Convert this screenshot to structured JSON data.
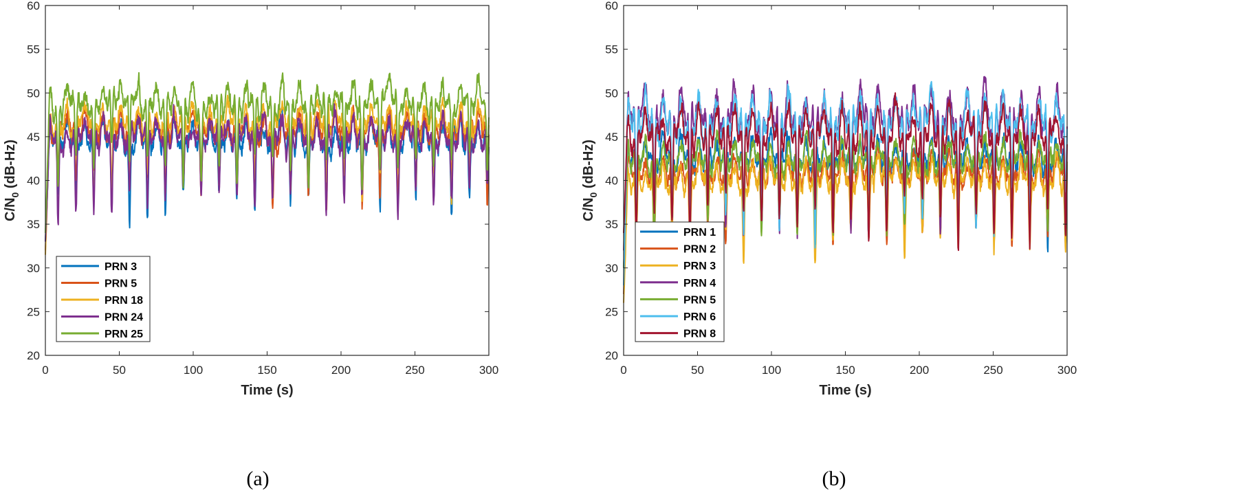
{
  "figure": {
    "caption_a": "(a)",
    "caption_b": "(b)"
  },
  "chart_data": [
    {
      "type": "line",
      "panel": "a",
      "caption": "(a)",
      "xlabel": "Time (s)",
      "ylabel_main": "C/N",
      "ylabel_sub": "0",
      "ylabel_unit": " (dB-Hz)",
      "xlim": [
        0,
        300
      ],
      "ylim": [
        20,
        60
      ],
      "xticks": [
        0,
        50,
        100,
        150,
        200,
        250,
        300
      ],
      "yticks": [
        20,
        25,
        30,
        35,
        40,
        45,
        50,
        55,
        60
      ],
      "grid": false,
      "legend_position": "bottom-left",
      "period_s": 12.1,
      "series": [
        {
          "name": "PRN 3",
          "color": "#0072BD",
          "start": 33,
          "peak": 46.5,
          "trough": 37.5,
          "noise": 1.0,
          "seed": 3
        },
        {
          "name": "PRN 5",
          "color": "#D95319",
          "start": 32,
          "peak": 47.5,
          "trough": 39.0,
          "noise": 1.0,
          "seed": 5
        },
        {
          "name": "PRN 18",
          "color": "#EDB120",
          "start": 31.5,
          "peak": 48.5,
          "trough": 39.5,
          "noise": 1.0,
          "seed": 18
        },
        {
          "name": "PRN 24",
          "color": "#7E2F8E",
          "start": 33,
          "peak": 47.0,
          "trough": 37.5,
          "noise": 1.1,
          "seed": 24
        },
        {
          "name": "PRN 25",
          "color": "#77AC30",
          "start": 34,
          "peak": 51.0,
          "trough": 41.5,
          "noise": 1.1,
          "seed": 25
        }
      ]
    },
    {
      "type": "line",
      "panel": "b",
      "caption": "(b)",
      "xlabel": "Time (s)",
      "ylabel_main": "C/N",
      "ylabel_sub": "0",
      "ylabel_unit": " (dB-Hz)",
      "xlim": [
        0,
        300
      ],
      "ylim": [
        20,
        60
      ],
      "xticks": [
        0,
        50,
        100,
        150,
        200,
        250,
        300
      ],
      "yticks": [
        20,
        25,
        30,
        35,
        40,
        45,
        50,
        55,
        60
      ],
      "grid": false,
      "legend_position": "left",
      "period_s": 12.1,
      "series": [
        {
          "name": "PRN 1",
          "color": "#0072BD",
          "start": 30,
          "peak": 44.5,
          "trough": 35.0,
          "noise": 1.0,
          "seed": 101
        },
        {
          "name": "PRN 2",
          "color": "#D95319",
          "start": 27,
          "peak": 42.5,
          "trough": 34.0,
          "noise": 1.0,
          "seed": 102
        },
        {
          "name": "PRN 3",
          "color": "#EDB120",
          "start": 26,
          "peak": 42.0,
          "trough": 33.0,
          "noise": 1.0,
          "seed": 103
        },
        {
          "name": "PRN 4",
          "color": "#7E2F8E",
          "start": 32,
          "peak": 50.0,
          "trough": 36.5,
          "noise": 1.2,
          "seed": 104
        },
        {
          "name": "PRN 5",
          "color": "#77AC30",
          "start": 30,
          "peak": 44.5,
          "trough": 35.0,
          "noise": 1.0,
          "seed": 105
        },
        {
          "name": "PRN 6",
          "color": "#4DBEEE",
          "start": 28,
          "peak": 49.5,
          "trough": 36.5,
          "noise": 1.2,
          "seed": 106
        },
        {
          "name": "PRN 8",
          "color": "#A2142F",
          "start": 34,
          "peak": 48.0,
          "trough": 35.5,
          "noise": 1.1,
          "seed": 108
        }
      ]
    }
  ]
}
